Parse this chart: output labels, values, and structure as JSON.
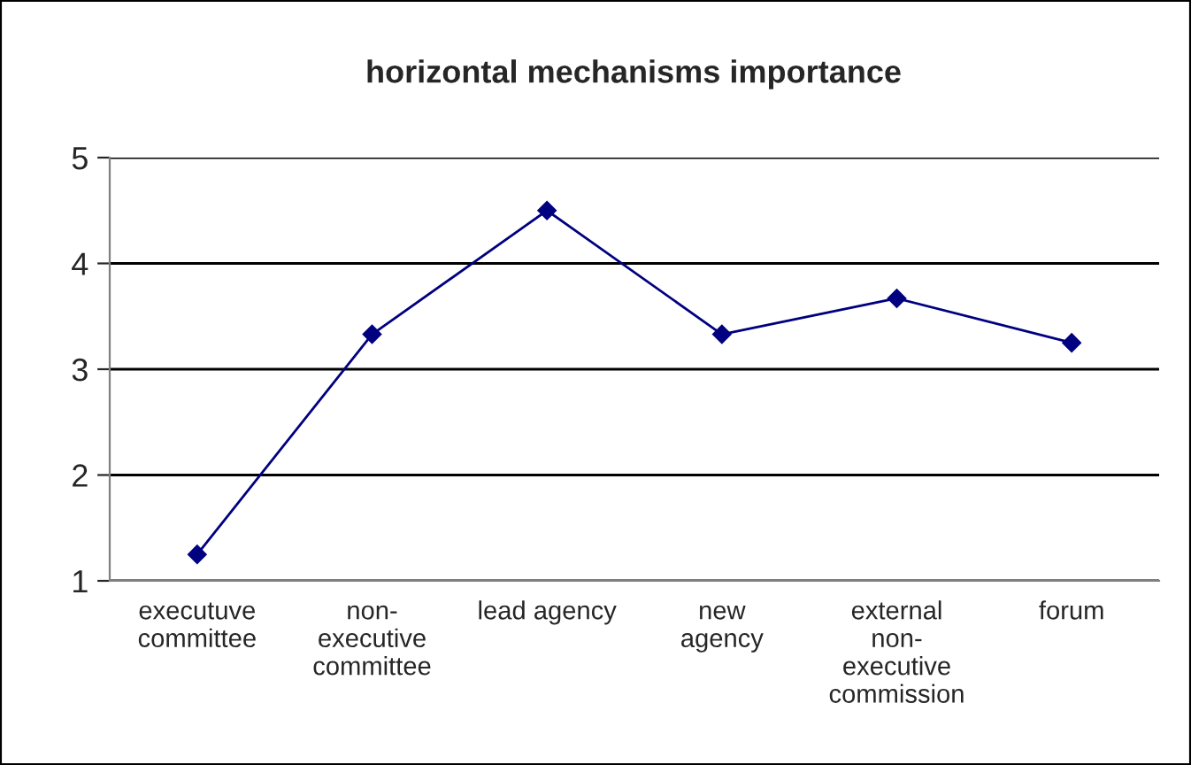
{
  "chart_data": {
    "type": "line",
    "title": "horizontal mechanisms importance",
    "categories": [
      "executuve\ncommittee",
      "non-\nexecutive\ncommittee",
      "lead agency",
      "new\nagency",
      "external\nnon-\nexecutive\ncommission",
      "forum"
    ],
    "series": [
      {
        "color": "#000080",
        "values": [
          1.25,
          3.33,
          4.5,
          3.33,
          3.67,
          3.25
        ]
      }
    ],
    "ylim": [
      1,
      5
    ],
    "yticks": [
      1,
      2,
      3,
      4,
      5
    ],
    "grid": "y",
    "marker": "diamond",
    "line_style": "solid",
    "legend": false
  }
}
